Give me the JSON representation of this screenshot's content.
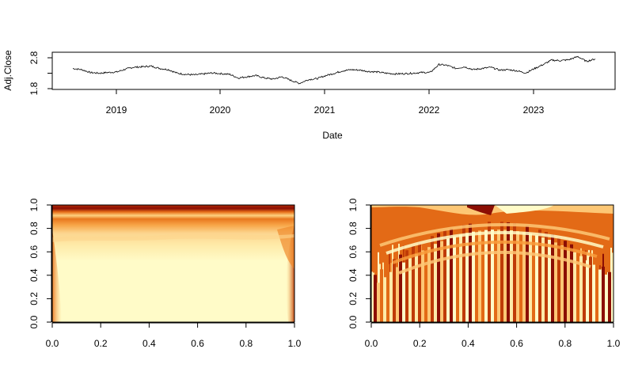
{
  "chart_data": [
    {
      "type": "line",
      "title": "",
      "xlabel": "Date",
      "ylabel": "Adj.Close",
      "x_ticks": [
        "2019",
        "2020",
        "2021",
        "2022",
        "2023"
      ],
      "y_ticks": [
        "1.8",
        "2.8"
      ],
      "x_range": [
        "2018-08-01",
        "2023-08-01"
      ],
      "ylim": [
        1.8,
        3.1
      ],
      "series": [
        {
          "x": [
            "2018-08-01",
            "2018-09-01",
            "2018-10-01",
            "2018-11-01",
            "2018-12-01",
            "2019-01-01",
            "2019-02-01",
            "2019-03-01",
            "2019-04-01",
            "2019-05-01",
            "2019-06-01",
            "2019-07-01",
            "2019-08-01",
            "2019-09-01",
            "2019-10-01",
            "2019-11-01",
            "2019-12-01",
            "2020-01-01",
            "2020-02-01",
            "2020-03-01",
            "2020-04-01",
            "2020-05-01",
            "2020-06-01",
            "2020-07-01",
            "2020-08-01",
            "2020-09-01",
            "2020-10-01",
            "2020-11-01",
            "2020-12-01",
            "2021-01-01",
            "2021-02-01",
            "2021-03-01",
            "2021-04-01",
            "2021-05-01",
            "2021-06-01",
            "2021-07-01",
            "2021-08-01",
            "2021-09-01",
            "2021-10-01",
            "2021-11-01",
            "2021-12-01",
            "2022-01-01",
            "2022-02-01",
            "2022-03-01",
            "2022-04-01",
            "2022-05-01",
            "2022-06-01",
            "2022-07-01",
            "2022-08-01",
            "2022-09-01",
            "2022-10-01",
            "2022-11-01",
            "2022-12-01",
            "2023-01-01",
            "2023-02-01",
            "2023-03-01",
            "2023-04-01",
            "2023-05-01",
            "2023-06-01",
            "2023-07-01",
            "2023-08-01"
          ],
          "values": [
            2.55,
            2.5,
            2.38,
            2.35,
            2.38,
            2.4,
            2.52,
            2.6,
            2.62,
            2.65,
            2.55,
            2.5,
            2.35,
            2.3,
            2.28,
            2.32,
            2.36,
            2.33,
            2.3,
            2.15,
            2.2,
            2.25,
            2.15,
            2.1,
            2.2,
            2.05,
            1.92,
            2.08,
            2.12,
            2.25,
            2.35,
            2.45,
            2.5,
            2.48,
            2.42,
            2.4,
            2.35,
            2.32,
            2.33,
            2.35,
            2.38,
            2.38,
            2.72,
            2.68,
            2.55,
            2.62,
            2.5,
            2.55,
            2.6,
            2.48,
            2.5,
            2.45,
            2.36,
            2.55,
            2.72,
            2.9,
            2.88,
            2.92,
            3.05,
            2.85,
            2.95
          ]
        }
      ],
      "grid": false,
      "color": "#000000"
    },
    {
      "type": "heatmap",
      "title": "",
      "xlabel": "",
      "ylabel": "",
      "x_ticks": [
        "0.0",
        "0.2",
        "0.4",
        "0.6",
        "0.8",
        "1.0"
      ],
      "y_ticks": [
        "0.0",
        "0.2",
        "0.4",
        "0.6",
        "0.8",
        "1.0"
      ],
      "xlim": [
        0,
        1
      ],
      "ylim": [
        0,
        1
      ],
      "palette": [
        "#fffbc8",
        "#feeaa8",
        "#fdc775",
        "#f89c3c",
        "#e36a16",
        "#bf3b07",
        "#8b0e04"
      ],
      "legend": "none"
    },
    {
      "type": "heatmap",
      "title": "",
      "xlabel": "",
      "ylabel": "",
      "x_ticks": [
        "0.0",
        "0.2",
        "0.4",
        "0.6",
        "0.8",
        "1.0"
      ],
      "y_ticks": [
        "0.0",
        "0.2",
        "0.4",
        "0.6",
        "0.8",
        "1.0"
      ],
      "xlim": [
        0,
        1
      ],
      "ylim": [
        0,
        1
      ],
      "palette": [
        "#fffbc8",
        "#feeaa8",
        "#fdc775",
        "#f89c3c",
        "#e36a16",
        "#bf3b07",
        "#8b0e04"
      ],
      "legend": "none"
    }
  ]
}
